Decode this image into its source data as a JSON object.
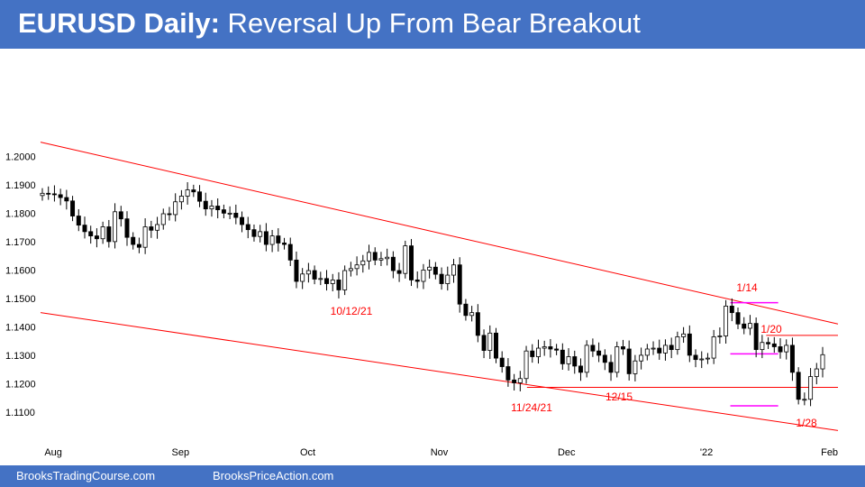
{
  "header": {
    "title_bold": "EURUSD Daily:",
    "title_rest": " Reversal Up From Bear Breakout"
  },
  "footer": {
    "left": "BrooksTradingCourse.com",
    "right": "BrooksPriceAction.com"
  },
  "colors": {
    "header_bg": "#4472c4",
    "trendline": "#ff0000",
    "annotation": "#ff0000",
    "magenta": "#ff00ff",
    "candle_border": "#000000"
  },
  "chart_data": {
    "type": "candlestick",
    "title": "EURUSD Daily: Reversal Up From Bear Breakout",
    "ylim": [
      1.103,
      1.209
    ],
    "y_ticks": [
      "1.2000",
      "1.1900",
      "1.1800",
      "1.1700",
      "1.1600",
      "1.1500",
      "1.1400",
      "1.1300",
      "1.1200",
      "1.1100"
    ],
    "month_labels": [
      {
        "label": "Aug",
        "date": "2021-08-02"
      },
      {
        "label": "Sep",
        "date": "2021-09-01"
      },
      {
        "label": "Oct",
        "date": "2021-10-01"
      },
      {
        "label": "Nov",
        "date": "2021-11-01"
      },
      {
        "label": "Dec",
        "date": "2021-12-01"
      },
      {
        "label": "'22",
        "date": "2022-01-03"
      },
      {
        "label": "Feb",
        "date": "2022-02-01"
      }
    ],
    "date_range": [
      "2021-07-30",
      "2022-02-03"
    ],
    "candles_close": [
      1.187,
      1.1868,
      1.1865,
      1.1855,
      1.1843,
      1.179,
      1.1758,
      1.1735,
      1.172,
      1.171,
      1.1752,
      1.17,
      1.1805,
      1.178,
      1.1715,
      1.169,
      1.168,
      1.1752,
      1.174,
      1.176,
      1.1798,
      1.1795,
      1.184,
      1.186,
      1.1882,
      1.1875,
      1.1842,
      1.1815,
      1.1825,
      1.1812,
      1.18,
      1.18,
      1.1785,
      1.176,
      1.1742,
      1.1718,
      1.1735,
      1.169,
      1.172,
      1.1695,
      1.169,
      1.1635,
      1.156,
      1.1586,
      1.1598,
      1.1568,
      1.157,
      1.1552,
      1.1565,
      1.153,
      1.1598,
      1.1605,
      1.1618,
      1.1632,
      1.1662,
      1.1635,
      1.164,
      1.1645,
      1.1598,
      1.1588,
      1.1685,
      1.1565,
      1.156,
      1.16,
      1.161,
      1.1585,
      1.1552,
      1.1582,
      1.1618,
      1.148,
      1.144,
      1.145,
      1.137,
      1.1317,
      1.1378,
      1.129,
      1.126,
      1.1213,
      1.1203,
      1.1218,
      1.1315,
      1.1295,
      1.1325,
      1.133,
      1.1322,
      1.1318,
      1.127,
      1.1295,
      1.1262,
      1.124,
      1.1335,
      1.1315,
      1.13,
      1.1275,
      1.124,
      1.133,
      1.1322,
      1.1235,
      1.128,
      1.13,
      1.1322,
      1.1325,
      1.1308,
      1.1335,
      1.132,
      1.1365,
      1.1375,
      1.13,
      1.1285,
      1.1287,
      1.129,
      1.1365,
      1.1368,
      1.1473,
      1.145,
      1.141,
      1.1395,
      1.1412,
      1.132,
      1.1345,
      1.134,
      1.133,
      1.1312,
      1.1335,
      1.124,
      1.1145,
      1.1145,
      1.1225,
      1.1252,
      1.1302
    ],
    "annotations": [
      {
        "text": "10/12/21"
      },
      {
        "text": "11/24/21"
      },
      {
        "text": "12/15"
      },
      {
        "text": "1/14"
      },
      {
        "text": "1/20"
      },
      {
        "text": "1/28"
      }
    ],
    "trendlines": [
      {
        "name": "upper",
        "from": [
          0.0,
          1.205
        ],
        "to": [
          1.0,
          1.141
        ]
      },
      {
        "name": "lower",
        "from": [
          0.0,
          1.145
        ],
        "to": [
          1.0,
          1.1035
        ]
      }
    ],
    "horizontal_lines": [
      {
        "name": "12/15",
        "y": 1.1187,
        "x_from": 0.61,
        "x_to": 1.0,
        "color": "red"
      },
      {
        "name": "1/20",
        "y": 1.137,
        "x_from": 0.91,
        "x_to": 1.0,
        "color": "red"
      },
      {
        "name": "1/14 high",
        "y": 1.1485,
        "x_from": 0.865,
        "x_to": 0.925,
        "color": "magenta"
      },
      {
        "name": "range low",
        "y": 1.1305,
        "x_from": 0.865,
        "x_to": 0.925,
        "color": "magenta"
      },
      {
        "name": "1/28 low",
        "y": 1.1122,
        "x_from": 0.865,
        "x_to": 0.925,
        "color": "magenta"
      }
    ]
  }
}
